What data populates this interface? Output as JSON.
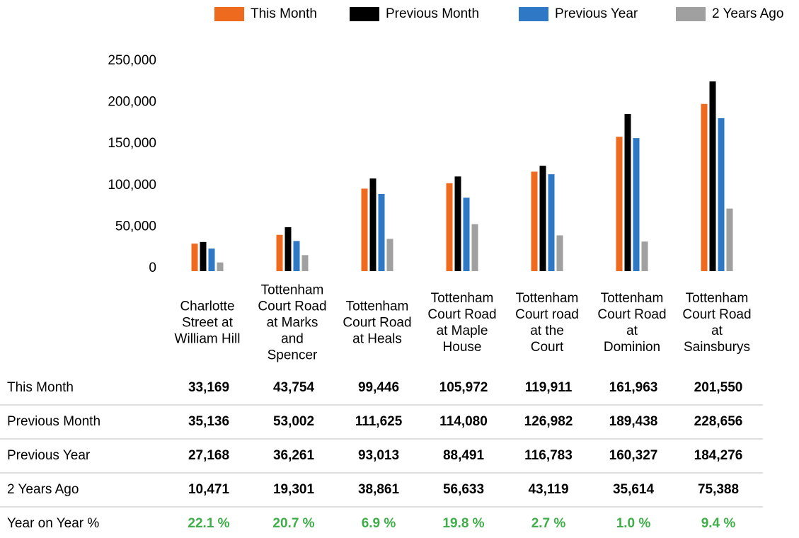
{
  "chart_data": {
    "type": "bar",
    "categories": [
      "Charlotte\nStreet at\nWilliam Hill",
      "Tottenham\nCourt Road\nat Marks\nand\nSpencer",
      "Tottenham\nCourt Road\nat Heals",
      "Tottenham\nCourt Road\nat Maple\nHouse",
      "Tottenham\nCourt road\nat the\nCourt",
      "Tottenham\nCourt Road\nat\nDominion",
      "Tottenham\nCourt Road\nat\nSainsburys"
    ],
    "series": [
      {
        "name": "This Month",
        "color": "#ee6a1f",
        "values": [
          33169,
          43754,
          99446,
          105972,
          119911,
          161963,
          201550
        ],
        "value_labels": [
          "33,169",
          "43,754",
          "99,446",
          "105,972",
          "119,911",
          "161,963",
          "201,550"
        ]
      },
      {
        "name": "Previous Month",
        "color": "#000000",
        "values": [
          35136,
          53002,
          111625,
          114080,
          126982,
          189438,
          228656
        ],
        "value_labels": [
          "35,136",
          "53,002",
          "111,625",
          "114,080",
          "126,982",
          "189,438",
          "228,656"
        ]
      },
      {
        "name": "Previous Year",
        "color": "#2f78c6",
        "values": [
          27168,
          36261,
          93013,
          88491,
          116783,
          160327,
          184276
        ],
        "value_labels": [
          "27,168",
          "36,261",
          "93,013",
          "88,491",
          "116,783",
          "160,327",
          "184,276"
        ]
      },
      {
        "name": "2 Years Ago",
        "color": "#a0a0a0",
        "values": [
          10471,
          19301,
          38861,
          56633,
          43119,
          35614,
          75388
        ],
        "value_labels": [
          "10,471",
          "19,301",
          "38,861",
          "56,633",
          "43,119",
          "35,614",
          "75,388"
        ]
      }
    ],
    "year_on_year": {
      "name": "Year on Year %",
      "color": "#3fae49",
      "values": [
        22.1,
        20.7,
        6.9,
        19.8,
        2.7,
        1.0,
        9.4
      ],
      "value_labels": [
        "22.1 %",
        "20.7 %",
        "6.9 %",
        "19.8 %",
        "2.7 %",
        "1.0 %",
        "9.4 %"
      ]
    },
    "ylim": [
      0,
      250000
    ],
    "yticks": [
      0,
      {
        "value": 50000,
        "label": "50,000"
      },
      {
        "value": 100000,
        "label": "100,000"
      },
      {
        "value": 150000,
        "label": "150,000"
      },
      {
        "value": 200000,
        "label": "200,000"
      },
      {
        "value": 250000,
        "label": "250,000"
      }
    ],
    "grid": false,
    "legend": "top"
  }
}
